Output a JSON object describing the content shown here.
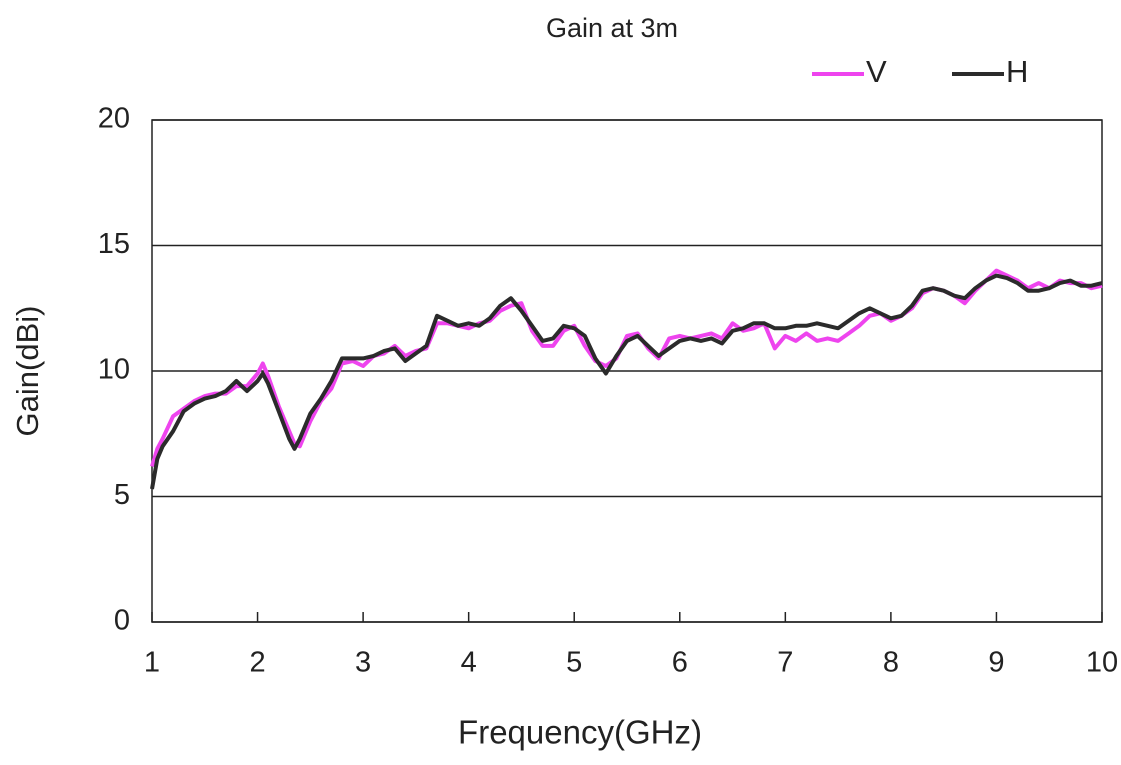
{
  "chart_data": {
    "type": "line",
    "title": "Gain at 3m",
    "xlabel": "Frequency(GHz)",
    "ylabel": "Gain(dBi)",
    "x": [
      1.0,
      1.05,
      1.1,
      1.2,
      1.3,
      1.4,
      1.5,
      1.6,
      1.7,
      1.8,
      1.9,
      2.0,
      2.05,
      2.1,
      2.2,
      2.3,
      2.35,
      2.4,
      2.5,
      2.6,
      2.7,
      2.8,
      2.9,
      3.0,
      3.1,
      3.2,
      3.3,
      3.4,
      3.5,
      3.6,
      3.7,
      3.8,
      3.9,
      4.0,
      4.1,
      4.2,
      4.3,
      4.4,
      4.5,
      4.6,
      4.7,
      4.8,
      4.9,
      5.0,
      5.1,
      5.2,
      5.3,
      5.4,
      5.5,
      5.6,
      5.7,
      5.8,
      5.9,
      6.0,
      6.1,
      6.2,
      6.3,
      6.4,
      6.5,
      6.6,
      6.7,
      6.8,
      6.9,
      7.0,
      7.1,
      7.2,
      7.3,
      7.4,
      7.5,
      7.6,
      7.7,
      7.8,
      7.9,
      8.0,
      8.1,
      8.2,
      8.3,
      8.4,
      8.5,
      8.6,
      8.7,
      8.8,
      8.9,
      9.0,
      9.1,
      9.2,
      9.3,
      9.4,
      9.5,
      9.6,
      9.7,
      9.8,
      9.9,
      10.0
    ],
    "series": [
      {
        "name": "V",
        "color": "#ee44ee",
        "values": [
          6.2,
          6.9,
          7.3,
          8.2,
          8.5,
          8.8,
          9.0,
          9.1,
          9.1,
          9.4,
          9.4,
          9.9,
          10.3,
          9.8,
          8.6,
          7.6,
          7.1,
          7.0,
          8.0,
          8.8,
          9.3,
          10.3,
          10.4,
          10.2,
          10.6,
          10.7,
          11.0,
          10.6,
          10.8,
          10.9,
          11.9,
          11.9,
          11.8,
          11.7,
          11.9,
          12.0,
          12.4,
          12.6,
          12.7,
          11.6,
          11.0,
          11.0,
          11.6,
          11.8,
          11.0,
          10.4,
          10.2,
          10.5,
          11.4,
          11.5,
          10.9,
          10.5,
          11.3,
          11.4,
          11.3,
          11.4,
          11.5,
          11.3,
          11.9,
          11.6,
          11.7,
          11.9,
          10.9,
          11.4,
          11.2,
          11.5,
          11.2,
          11.3,
          11.2,
          11.5,
          11.8,
          12.2,
          12.3,
          12.0,
          12.2,
          12.5,
          13.1,
          13.3,
          13.2,
          13.0,
          12.7,
          13.2,
          13.6,
          14.0,
          13.8,
          13.6,
          13.3,
          13.5,
          13.3,
          13.6,
          13.5,
          13.5,
          13.3,
          13.4
        ]
      },
      {
        "name": "H",
        "color": "#2b2b2b",
        "values": [
          5.3,
          6.5,
          7.0,
          7.6,
          8.4,
          8.7,
          8.9,
          9.0,
          9.2,
          9.6,
          9.2,
          9.6,
          9.9,
          9.5,
          8.4,
          7.3,
          6.9,
          7.3,
          8.3,
          8.9,
          9.6,
          10.5,
          10.5,
          10.5,
          10.6,
          10.8,
          10.9,
          10.4,
          10.7,
          11.0,
          12.2,
          12.0,
          11.8,
          11.9,
          11.8,
          12.1,
          12.6,
          12.9,
          12.4,
          11.8,
          11.2,
          11.3,
          11.8,
          11.7,
          11.4,
          10.5,
          9.9,
          10.6,
          11.2,
          11.4,
          11.0,
          10.6,
          10.9,
          11.2,
          11.3,
          11.2,
          11.3,
          11.1,
          11.6,
          11.7,
          11.9,
          11.9,
          11.7,
          11.7,
          11.8,
          11.8,
          11.9,
          11.8,
          11.7,
          12.0,
          12.3,
          12.5,
          12.3,
          12.1,
          12.2,
          12.6,
          13.2,
          13.3,
          13.2,
          13.0,
          12.9,
          13.3,
          13.6,
          13.8,
          13.7,
          13.5,
          13.2,
          13.2,
          13.3,
          13.5,
          13.6,
          13.4,
          13.4,
          13.5
        ]
      }
    ],
    "xlim": [
      1,
      10
    ],
    "xticks": [
      1,
      2,
      3,
      4,
      5,
      6,
      7,
      8,
      9,
      10
    ],
    "ylim": [
      0,
      20
    ],
    "yticks": [
      0,
      5,
      10,
      15,
      20
    ],
    "grid": true,
    "legend": "top-right"
  }
}
